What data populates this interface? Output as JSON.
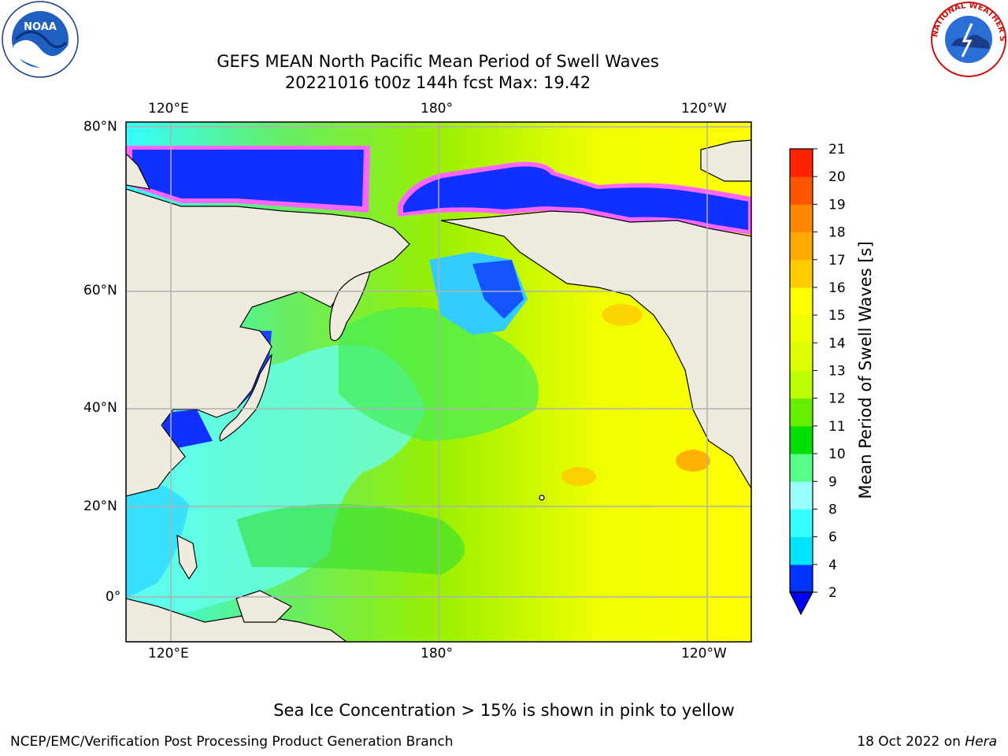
{
  "header": {
    "title_line1": "GEFS MEAN North Pacific Mean Period of Swell Waves",
    "title_line2": "20221016 t00z 144h fcst   Max: 19.42"
  },
  "map": {
    "lon_labels": [
      "120°E",
      "180°",
      "120°W"
    ],
    "lat_labels": [
      "80°N",
      "60°N",
      "40°N",
      "20°N",
      "0°"
    ],
    "colors": {
      "land": "#efecdf",
      "grid": "#b0b0b0",
      "ice": "#ff66ff"
    }
  },
  "colorbar": {
    "label": "Mean Period of Swell Waves [s]",
    "ticks": [
      "2",
      "4",
      "6",
      "8",
      "9",
      "10",
      "11",
      "12",
      "13",
      "14",
      "15",
      "16",
      "17",
      "18",
      "19",
      "20",
      "21"
    ],
    "colors": [
      "#0033ff",
      "#00e5ff",
      "#33ffff",
      "#99ffff",
      "#55ff88",
      "#00e000",
      "#66ee00",
      "#bbff00",
      "#ddff00",
      "#eeff00",
      "#ffff00",
      "#ffcc00",
      "#ffaa00",
      "#ff8800",
      "#ff5500",
      "#ff2200"
    ],
    "extend_color": "#0000ff"
  },
  "footer": {
    "note": "Sea Ice Concentration > 15% is shown in pink to yellow",
    "credit": "NCEP/EMC/Verification Post Processing Product Generation Branch",
    "date_text": "18 Oct 2022 on ",
    "machine": "Hera"
  },
  "logos": {
    "noaa_text": "NOAA",
    "nws_text": "NATIONAL WEATHER SERVICE"
  }
}
